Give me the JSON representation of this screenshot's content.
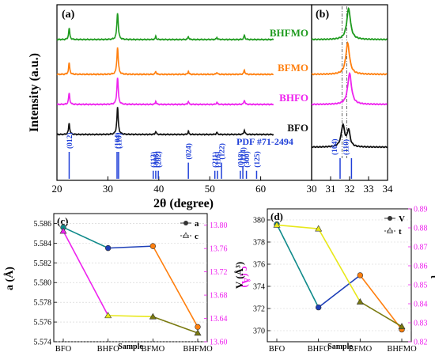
{
  "panel_a": {
    "label": "(a)",
    "ylabel": "Intensity (a.u.)",
    "xlabel": "2θ (degree)",
    "xticks": [
      "20",
      "30",
      "40",
      "50",
      "60"
    ],
    "samples": [
      {
        "name": "BHFMO",
        "color": "#1e9a1e"
      },
      {
        "name": "BFMO",
        "color": "#ff7f0e"
      },
      {
        "name": "BHFO",
        "color": "#ee22ee"
      },
      {
        "name": "BFO",
        "color": "#111111"
      }
    ],
    "pdf_label": "PDF #71-2494",
    "pdf_color": "#1f3fd8",
    "hkl": [
      {
        "label": "(012)",
        "x": 22.4
      },
      {
        "label": "(104)",
        "x": 31.8
      },
      {
        "label": "(110)",
        "x": 32.1
      },
      {
        "label": "(113)",
        "x": 38.9
      },
      {
        "label": "(006)",
        "x": 39.4
      },
      {
        "label": "(202)",
        "x": 39.9
      },
      {
        "label": "(024)",
        "x": 45.8
      },
      {
        "label": "(211)",
        "x": 51.0
      },
      {
        "label": "(116)",
        "x": 51.5
      },
      {
        "label": "(122)",
        "x": 52.3
      },
      {
        "label": "(018)",
        "x": 56.0
      },
      {
        "label": "(214)",
        "x": 56.5
      },
      {
        "label": "(300)",
        "x": 57.2
      },
      {
        "label": "(125)",
        "x": 59.2
      }
    ]
  },
  "panel_b": {
    "label": "(b)",
    "xticks": [
      "30",
      "31",
      "32",
      "33",
      "34"
    ],
    "hkl": [
      {
        "label": "(104)",
        "x": 31.5
      },
      {
        "label": "(110)",
        "x": 32.1
      }
    ]
  },
  "panel_c": {
    "label": "(c)",
    "xlabel": "Sample",
    "ylabel_left": "a (Å)",
    "ylabel_right": "c (Å)",
    "legend": [
      "a",
      "c"
    ],
    "left_ticks": [
      "5.574",
      "5.576",
      "5.578",
      "5.580",
      "5.582",
      "5.584",
      "5.586"
    ],
    "right_ticks": [
      "13.60",
      "13.64",
      "13.68",
      "13.72",
      "13.76",
      "13.80"
    ],
    "right_color": "#ee22ee"
  },
  "panel_d": {
    "label": "(d)",
    "xlabel": "Sample",
    "ylabel_left": "V (Å³)",
    "ylabel_right": "t",
    "legend": [
      "V",
      "t"
    ],
    "left_ticks": [
      "370",
      "372",
      "374",
      "376",
      "378",
      "380"
    ],
    "right_ticks": [
      "0.82",
      "0.83",
      "0.84",
      "0.85",
      "0.86",
      "0.87",
      "0.88",
      "0.89"
    ],
    "right_color": "#ee22ee"
  },
  "chart_data": [
    {
      "type": "line",
      "panel": "a",
      "title": "",
      "xlabel": "2θ (degree)",
      "ylabel": "Intensity (a.u.)",
      "xlim": [
        20,
        70
      ],
      "peaks": [
        22.4,
        31.9,
        39.4,
        45.8,
        51.4,
        56.8
      ],
      "series": [
        {
          "name": "BHFMO",
          "heights": [
            0.42,
            1.0,
            0.12,
            0.12,
            0.08,
            0.16
          ]
        },
        {
          "name": "BFMO",
          "heights": [
            0.42,
            1.0,
            0.12,
            0.12,
            0.08,
            0.16
          ]
        },
        {
          "name": "BHFO",
          "heights": [
            0.42,
            1.0,
            0.12,
            0.12,
            0.08,
            0.16
          ]
        },
        {
          "name": "BFO",
          "heights": [
            0.42,
            1.0,
            0.12,
            0.12,
            0.08,
            0.16
          ]
        }
      ],
      "reference": {
        "name": "PDF #71-2494",
        "x": [
          22.4,
          31.8,
          32.1,
          38.9,
          39.4,
          39.9,
          45.8,
          51.0,
          51.5,
          52.3,
          56.0,
          56.5,
          57.2,
          59.2
        ],
        "values": [
          1.0,
          1.0,
          1.0,
          0.3,
          0.3,
          0.3,
          0.6,
          0.3,
          0.3,
          0.6,
          0.3,
          0.45,
          0.3,
          0.3
        ]
      }
    },
    {
      "type": "line",
      "panel": "b",
      "xlim": [
        30,
        34
      ],
      "series": [
        {
          "name": "BHFMO",
          "peak_center": 31.95
        },
        {
          "name": "BFMO",
          "peak_center": 31.9
        },
        {
          "name": "BHFO",
          "peak_center": 32.0
        },
        {
          "name": "BFO",
          "peak_center": 31.75
        }
      ],
      "dashed_lines": [
        31.6,
        31.85
      ]
    },
    {
      "type": "line",
      "panel": "c",
      "categories": [
        "BFO",
        "BHFO",
        "BFMO",
        "BHFMO"
      ],
      "xlabel": "Sample",
      "series": [
        {
          "name": "a",
          "axis": "left",
          "values": [
            5.5856,
            5.5835,
            5.5837,
            5.5755
          ],
          "ylim": [
            5.574,
            5.587
          ]
        },
        {
          "name": "c",
          "axis": "right",
          "values": [
            13.79,
            13.645,
            13.643,
            13.615
          ],
          "ylim": [
            13.6,
            13.82
          ]
        }
      ]
    },
    {
      "type": "line",
      "panel": "d",
      "categories": [
        "BFO",
        "BHFO",
        "BFMO",
        "BHFMO"
      ],
      "xlabel": "Sample",
      "series": [
        {
          "name": "V",
          "axis": "left",
          "values": [
            379.6,
            372.1,
            375.0,
            370.1
          ],
          "ylim": [
            369,
            381
          ]
        },
        {
          "name": "t",
          "axis": "right",
          "values": [
            0.8815,
            0.8795,
            0.841,
            0.828
          ],
          "ylim": [
            0.82,
            0.89
          ]
        }
      ]
    }
  ]
}
